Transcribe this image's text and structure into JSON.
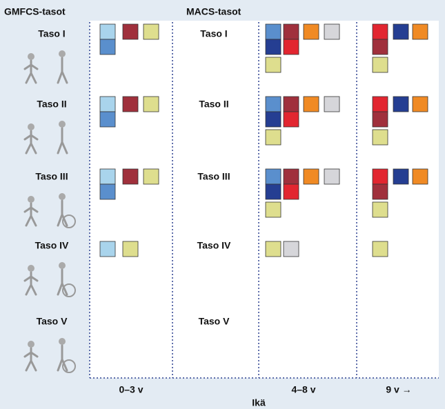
{
  "gmfcs": {
    "title": "GMFCS-tasot",
    "levels": [
      "Taso I",
      "Taso II",
      "Taso III",
      "Taso IV",
      "Taso V"
    ]
  },
  "macs": {
    "title": "MACS-tasot",
    "levels": [
      "Taso I",
      "Taso II",
      "Taso III",
      "Taso IV",
      "Taso V"
    ]
  },
  "axis": {
    "label": "Ikä",
    "ages": [
      "0–3 v",
      "4–8 v",
      "9 v →"
    ]
  }
}
